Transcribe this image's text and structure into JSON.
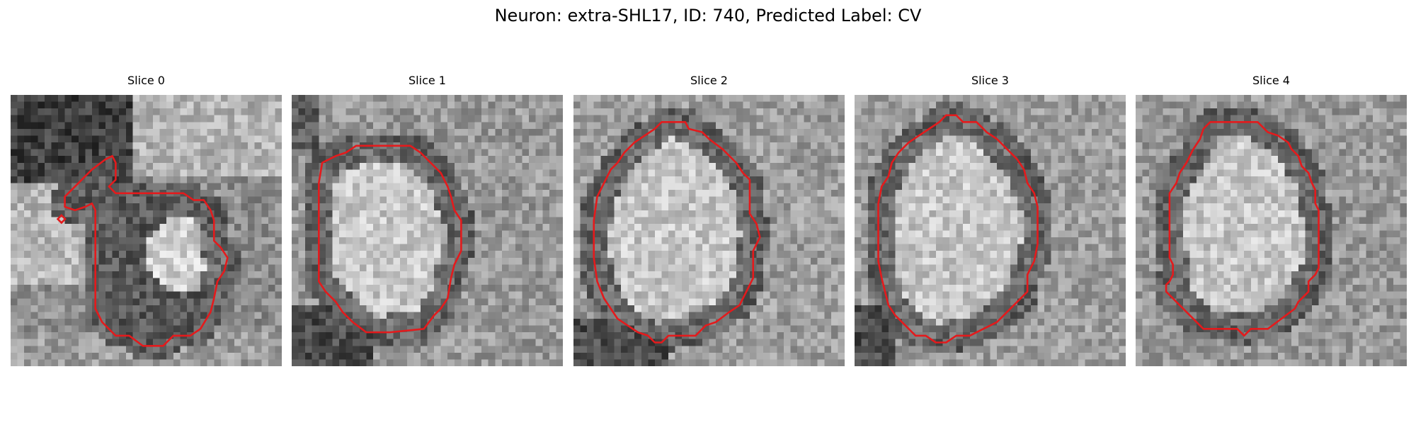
{
  "figure": {
    "title": "Neuron: extra-SHL17, ID: 740, Predicted Label: CV"
  },
  "contour_color": "#e41a1c",
  "panels": [
    {
      "title": "Slice 0",
      "contour": [
        [
          15.5,
          10
        ],
        [
          15.5,
          12.5
        ],
        [
          14.5,
          13.5
        ],
        [
          15.5,
          14.5
        ],
        [
          17,
          14.5
        ],
        [
          25.5,
          14.5
        ],
        [
          27,
          15.5
        ],
        [
          28.5,
          15.5
        ],
        [
          29.5,
          17
        ],
        [
          30,
          18.5
        ],
        [
          30,
          21.5
        ],
        [
          31,
          22.5
        ],
        [
          32,
          24
        ],
        [
          31.5,
          26
        ],
        [
          30.5,
          27.5
        ],
        [
          30,
          30
        ],
        [
          29.5,
          32
        ],
        [
          28,
          34.5
        ],
        [
          26.5,
          35.5
        ],
        [
          24,
          35.5
        ],
        [
          22.5,
          37
        ],
        [
          19.5,
          37
        ],
        [
          17.5,
          35.5
        ],
        [
          15.5,
          35.5
        ],
        [
          13.5,
          33.5
        ],
        [
          12.5,
          31.5
        ],
        [
          12.5,
          17
        ],
        [
          12,
          16
        ],
        [
          11,
          16.5
        ],
        [
          9.5,
          17
        ],
        [
          8,
          16.5
        ],
        [
          8,
          15
        ],
        [
          9,
          14
        ],
        [
          10.5,
          12.5
        ],
        [
          12,
          11
        ],
        [
          14,
          9.5
        ],
        [
          15,
          9
        ]
      ],
      "marker": [
        7.5,
        18.3
      ]
    },
    {
      "title": "Slice 1",
      "contour": [
        [
          12,
          7.5
        ],
        [
          17.5,
          7.5
        ],
        [
          19,
          8.5
        ],
        [
          20.5,
          10
        ],
        [
          22,
          11.5
        ],
        [
          23,
          13.5
        ],
        [
          23.5,
          15
        ],
        [
          24,
          17
        ],
        [
          25,
          18.5
        ],
        [
          25,
          23
        ],
        [
          24,
          25
        ],
        [
          23.5,
          27
        ],
        [
          23,
          30
        ],
        [
          22,
          31.5
        ],
        [
          21,
          32.5
        ],
        [
          19.5,
          34.5
        ],
        [
          14.5,
          35
        ],
        [
          11,
          35
        ],
        [
          9,
          33.5
        ],
        [
          7.5,
          32
        ],
        [
          6.5,
          30.5
        ],
        [
          5,
          29
        ],
        [
          4,
          27.5
        ],
        [
          4,
          13
        ],
        [
          4.5,
          10
        ],
        [
          6.5,
          9
        ],
        [
          8,
          8.5
        ],
        [
          9.5,
          7.5
        ]
      ]
    },
    {
      "title": "Slice 2",
      "contour": [
        [
          13,
          4
        ],
        [
          16.5,
          4
        ],
        [
          17,
          5
        ],
        [
          19,
          5.5
        ],
        [
          20,
          6.5
        ],
        [
          22,
          8
        ],
        [
          24,
          10
        ],
        [
          25,
          11.5
        ],
        [
          26,
          12.5
        ],
        [
          26,
          17.5
        ],
        [
          27,
          19
        ],
        [
          27.5,
          21
        ],
        [
          26.5,
          23
        ],
        [
          26.5,
          27
        ],
        [
          25.5,
          29
        ],
        [
          24.5,
          31
        ],
        [
          23,
          32
        ],
        [
          21,
          33.5
        ],
        [
          19.5,
          34
        ],
        [
          18,
          35.5
        ],
        [
          14,
          35.5
        ],
        [
          13,
          36.5
        ],
        [
          12,
          36.5
        ],
        [
          11,
          35.5
        ],
        [
          9.5,
          35
        ],
        [
          8,
          34
        ],
        [
          6.5,
          33
        ],
        [
          5.5,
          31.5
        ],
        [
          4.5,
          30
        ],
        [
          3.5,
          27.5
        ],
        [
          3,
          24
        ],
        [
          3,
          18.5
        ],
        [
          3.5,
          15
        ],
        [
          4.5,
          13
        ],
        [
          5.5,
          11
        ],
        [
          6.5,
          10
        ],
        [
          7.5,
          8.5
        ],
        [
          9,
          7
        ],
        [
          10.5,
          6
        ],
        [
          12,
          5
        ]
      ]
    },
    {
      "title": "Slice 3",
      "contour": [
        [
          13.5,
          3
        ],
        [
          15,
          3
        ],
        [
          16,
          4
        ],
        [
          18,
          4
        ],
        [
          19.5,
          5.5
        ],
        [
          21,
          6.5
        ],
        [
          22.5,
          8
        ],
        [
          24,
          9.5
        ],
        [
          25,
          11
        ],
        [
          25.5,
          13
        ],
        [
          26.5,
          14.5
        ],
        [
          27,
          16.5
        ],
        [
          27,
          22
        ],
        [
          26.5,
          24.5
        ],
        [
          25.5,
          26.5
        ],
        [
          25.5,
          29
        ],
        [
          24,
          30.5
        ],
        [
          22.5,
          32
        ],
        [
          21,
          33.5
        ],
        [
          19,
          34.5
        ],
        [
          17,
          35.5
        ],
        [
          15,
          35.5
        ],
        [
          13.5,
          36.5
        ],
        [
          12,
          36.5
        ],
        [
          10.5,
          35.5
        ],
        [
          9,
          35.5
        ],
        [
          7.5,
          34
        ],
        [
          6,
          32.5
        ],
        [
          5,
          31
        ],
        [
          4.5,
          29
        ],
        [
          4,
          27
        ],
        [
          3.5,
          24.5
        ],
        [
          3.5,
          16
        ],
        [
          4,
          13.5
        ],
        [
          5,
          12
        ],
        [
          5.5,
          10
        ],
        [
          6.5,
          8.5
        ],
        [
          8,
          7
        ],
        [
          9.5,
          6
        ],
        [
          11,
          5
        ],
        [
          12.5,
          4
        ]
      ]
    },
    {
      "title": "Slice 4",
      "contour": [
        [
          11,
          4
        ],
        [
          18,
          4
        ],
        [
          19.5,
          5.5
        ],
        [
          21,
          6
        ],
        [
          22.5,
          7
        ],
        [
          23,
          8
        ],
        [
          24,
          9
        ],
        [
          24.5,
          10.5
        ],
        [
          25.5,
          11.5
        ],
        [
          26,
          13
        ],
        [
          26.5,
          14
        ],
        [
          26.5,
          16
        ],
        [
          27,
          17
        ],
        [
          27,
          25.5
        ],
        [
          26.5,
          26.5
        ],
        [
          25.5,
          27.5
        ],
        [
          25.5,
          29
        ],
        [
          24,
          30.5
        ],
        [
          23.5,
          31.5
        ],
        [
          21.5,
          33
        ],
        [
          19.5,
          34.5
        ],
        [
          17,
          34.5
        ],
        [
          16,
          35.5
        ],
        [
          15,
          34.5
        ],
        [
          12.5,
          34.5
        ],
        [
          10,
          34.5
        ],
        [
          8,
          32.5
        ],
        [
          6,
          30.5
        ],
        [
          4.5,
          29
        ],
        [
          4.5,
          28
        ],
        [
          5,
          27.5
        ],
        [
          5.5,
          26.5
        ],
        [
          5.5,
          25
        ],
        [
          5,
          24
        ],
        [
          5,
          14.5
        ],
        [
          6,
          13
        ],
        [
          6.5,
          11.5
        ],
        [
          7.5,
          10
        ],
        [
          8.5,
          8
        ],
        [
          9.5,
          6.5
        ],
        [
          10,
          5
        ]
      ]
    }
  ]
}
